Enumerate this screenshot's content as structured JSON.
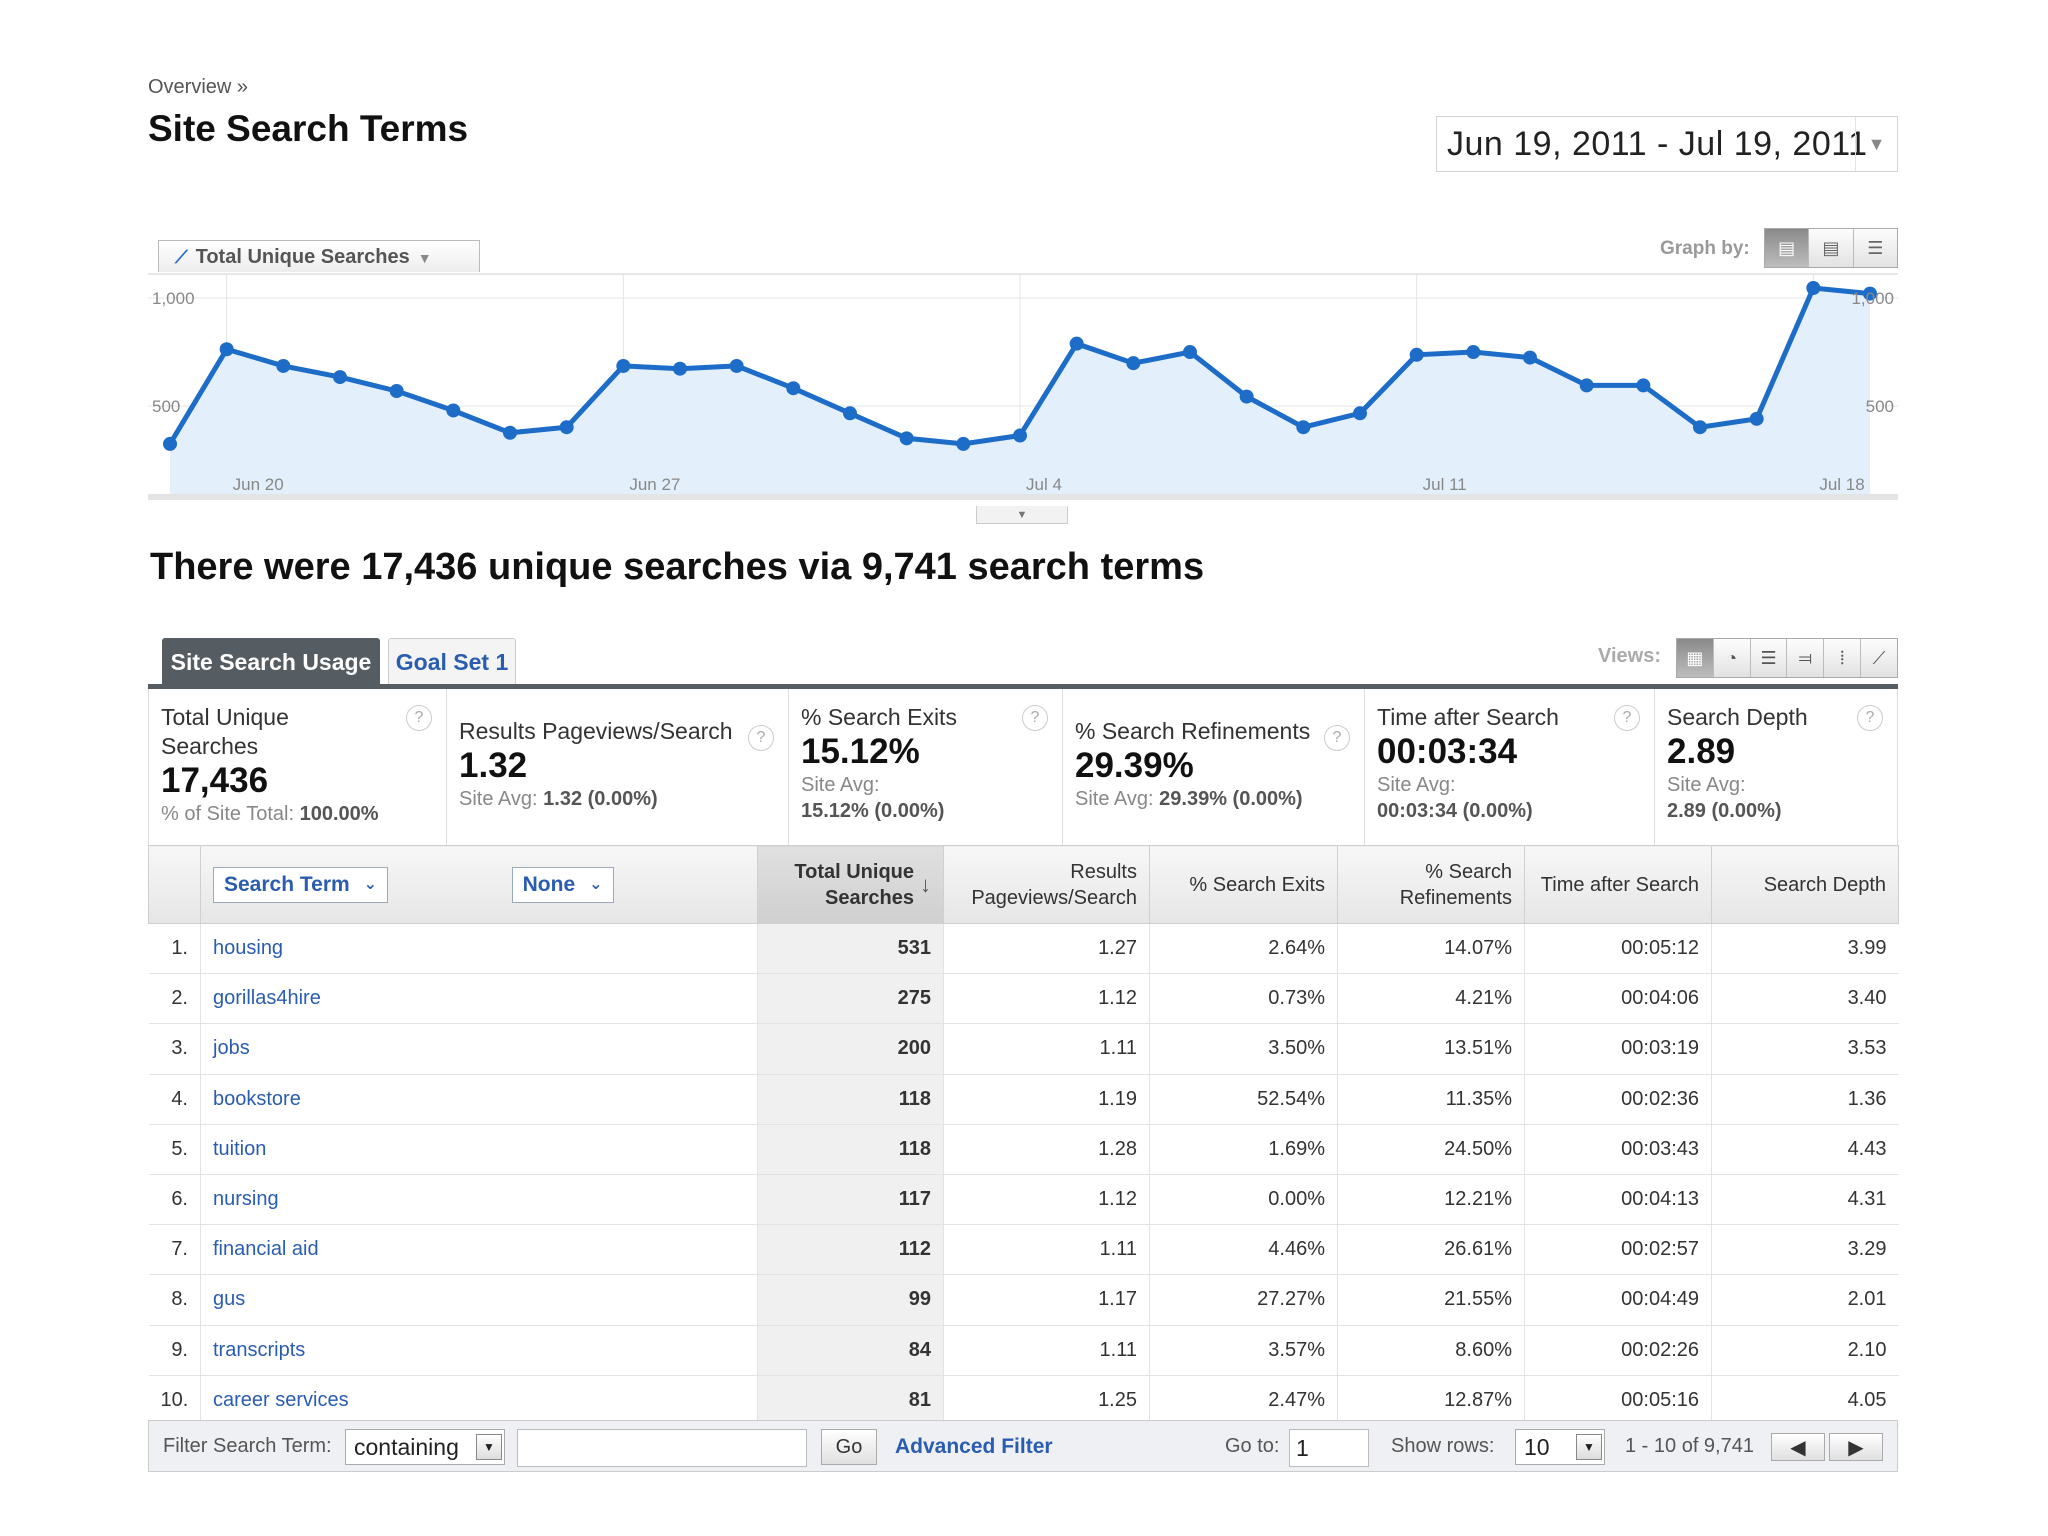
{
  "breadcrumb": "Overview »",
  "page_title": "Site Search Terms",
  "date_range": "Jun 19, 2011 - Jul 19, 2011",
  "metric_selector": {
    "label": "Total Unique Searches",
    "icon": "line-chart-icon"
  },
  "graph_by": {
    "label": "Graph by:",
    "options": [
      "day",
      "week",
      "month"
    ],
    "active": 0
  },
  "chart_data": {
    "type": "area",
    "title": "",
    "xlabel": "",
    "ylabel": "",
    "x": [
      "Jun 19",
      "Jun 20",
      "Jun 21",
      "Jun 22",
      "Jun 23",
      "Jun 24",
      "Jun 25",
      "Jun 26",
      "Jun 27",
      "Jun 28",
      "Jun 29",
      "Jun 30",
      "Jul 1",
      "Jul 2",
      "Jul 3",
      "Jul 4",
      "Jul 5",
      "Jul 6",
      "Jul 7",
      "Jul 8",
      "Jul 9",
      "Jul 10",
      "Jul 11",
      "Jul 12",
      "Jul 13",
      "Jul 14",
      "Jul 15",
      "Jul 16",
      "Jul 17",
      "Jul 18",
      "Jul 19"
    ],
    "x_tick_labels": [
      "Jun 20",
      "Jun 27",
      "Jul 4",
      "Jul 11",
      "Jul 18"
    ],
    "series": [
      {
        "name": "Total Unique Searches",
        "values": [
          440,
          780,
          720,
          680,
          630,
          560,
          480,
          500,
          720,
          710,
          720,
          640,
          550,
          460,
          440,
          470,
          800,
          730,
          770,
          610,
          500,
          550,
          760,
          770,
          750,
          650,
          650,
          500,
          530,
          1000,
          980
        ]
      }
    ],
    "ylim": [
      0,
      1000
    ],
    "y_tick_labels": [
      "1,000",
      "500"
    ],
    "y_tick_labels_right": [
      "1,000",
      "500"
    ],
    "grid": true,
    "colors": {
      "line": "#1c6cc8",
      "fill": "#e3effa"
    }
  },
  "summary_heading": "There were 17,436 unique searches via 9,741 search terms",
  "tabs": [
    {
      "label": "Site Search Usage",
      "active": true
    },
    {
      "label": "Goal Set 1",
      "active": false
    }
  ],
  "views": {
    "label": "Views:",
    "options": [
      "table",
      "pie",
      "bar",
      "compare",
      "pivot",
      "graph"
    ]
  },
  "scorecards": [
    {
      "title": "Total Unique Searches",
      "value": "17,436",
      "sub": "% of Site Total:",
      "sub_value": "100.00%"
    },
    {
      "title": "Results Pageviews/Search",
      "value": "1.32",
      "sub": "Site Avg:",
      "sub_value": "1.32 (0.00%)"
    },
    {
      "title": "% Search Exits",
      "value": "15.12%",
      "sub": "Site Avg:",
      "sub_value": "15.12% (0.00%)"
    },
    {
      "title": "% Search Refinements",
      "value": "29.39%",
      "sub": "Site Avg:",
      "sub_value": "29.39% (0.00%)"
    },
    {
      "title": "Time after Search",
      "value": "00:03:34",
      "sub": "Site Avg:",
      "sub_value": "00:03:34 (0.00%)"
    },
    {
      "title": "Search Depth",
      "value": "2.89",
      "sub": "Site Avg:",
      "sub_value": "2.89 (0.00%)"
    }
  ],
  "table": {
    "dimension_primary": "Search Term",
    "dimension_secondary": "None",
    "columns": [
      {
        "label_1": "Total Unique",
        "label_2": "Searches"
      },
      {
        "label_1": "Results",
        "label_2": "Pageviews/Search"
      },
      {
        "label_1": "% Search Exits",
        "label_2": ""
      },
      {
        "label_1": "% Search",
        "label_2": "Refinements"
      },
      {
        "label_1": "Time after Search",
        "label_2": ""
      },
      {
        "label_1": "Search Depth",
        "label_2": ""
      }
    ],
    "rows": [
      {
        "idx": "1.",
        "term": "housing",
        "cells": [
          "531",
          "1.27",
          "2.64%",
          "14.07%",
          "00:05:12",
          "3.99"
        ]
      },
      {
        "idx": "2.",
        "term": "gorillas4hire",
        "cells": [
          "275",
          "1.12",
          "0.73%",
          "4.21%",
          "00:04:06",
          "3.40"
        ]
      },
      {
        "idx": "3.",
        "term": "jobs",
        "cells": [
          "200",
          "1.11",
          "3.50%",
          "13.51%",
          "00:03:19",
          "3.53"
        ]
      },
      {
        "idx": "4.",
        "term": "bookstore",
        "cells": [
          "118",
          "1.19",
          "52.54%",
          "11.35%",
          "00:02:36",
          "1.36"
        ]
      },
      {
        "idx": "5.",
        "term": "tuition",
        "cells": [
          "118",
          "1.28",
          "1.69%",
          "24.50%",
          "00:03:43",
          "4.43"
        ]
      },
      {
        "idx": "6.",
        "term": "nursing",
        "cells": [
          "117",
          "1.12",
          "0.00%",
          "12.21%",
          "00:04:13",
          "4.31"
        ]
      },
      {
        "idx": "7.",
        "term": "financial aid",
        "cells": [
          "112",
          "1.11",
          "4.46%",
          "26.61%",
          "00:02:57",
          "3.29"
        ]
      },
      {
        "idx": "8.",
        "term": "gus",
        "cells": [
          "99",
          "1.17",
          "27.27%",
          "21.55%",
          "00:04:49",
          "2.01"
        ]
      },
      {
        "idx": "9.",
        "term": "transcripts",
        "cells": [
          "84",
          "1.11",
          "3.57%",
          "8.60%",
          "00:02:26",
          "2.10"
        ]
      },
      {
        "idx": "10.",
        "term": "career services",
        "cells": [
          "81",
          "1.25",
          "2.47%",
          "12.87%",
          "00:05:16",
          "4.05"
        ]
      }
    ]
  },
  "footer": {
    "filter_label": "Filter Search Term:",
    "filter_mode": "containing",
    "filter_value": "",
    "go_label": "Go",
    "advanced_filter": "Advanced Filter",
    "goto_label": "Go to:",
    "goto_value": "1",
    "show_rows_label": "Show rows:",
    "show_rows_value": "10",
    "range_label": "1 - 10 of 9,741"
  }
}
